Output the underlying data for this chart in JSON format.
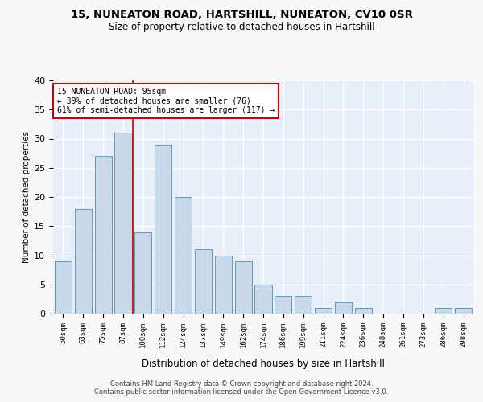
{
  "title1": "15, NUNEATON ROAD, HARTSHILL, NUNEATON, CV10 0SR",
  "title2": "Size of property relative to detached houses in Hartshill",
  "xlabel": "Distribution of detached houses by size in Hartshill",
  "ylabel": "Number of detached properties",
  "footer1": "Contains HM Land Registry data © Crown copyright and database right 2024.",
  "footer2": "Contains public sector information licensed under the Open Government Licence v3.0.",
  "bar_labels": [
    "50sqm",
    "63sqm",
    "75sqm",
    "87sqm",
    "100sqm",
    "112sqm",
    "124sqm",
    "137sqm",
    "149sqm",
    "162sqm",
    "174sqm",
    "186sqm",
    "199sqm",
    "211sqm",
    "224sqm",
    "236sqm",
    "248sqm",
    "261sqm",
    "273sqm",
    "286sqm",
    "298sqm"
  ],
  "bar_values": [
    9,
    18,
    27,
    31,
    14,
    29,
    20,
    11,
    10,
    9,
    5,
    3,
    3,
    1,
    2,
    1,
    0,
    0,
    0,
    1,
    1
  ],
  "bar_color": "#c8d8e8",
  "bar_edge_color": "#6699bb",
  "background_color": "#e8eef8",
  "grid_color": "#ffffff",
  "red_line_x": 3.5,
  "annotation_text": "15 NUNEATON ROAD: 95sqm\n← 39% of detached houses are smaller (76)\n61% of semi-detached houses are larger (117) →",
  "annotation_box_color": "#ffffff",
  "annotation_edge_color": "#cc0000",
  "red_line_color": "#cc0000",
  "ylim": [
    0,
    40
  ],
  "yticks": [
    0,
    5,
    10,
    15,
    20,
    25,
    30,
    35,
    40
  ]
}
